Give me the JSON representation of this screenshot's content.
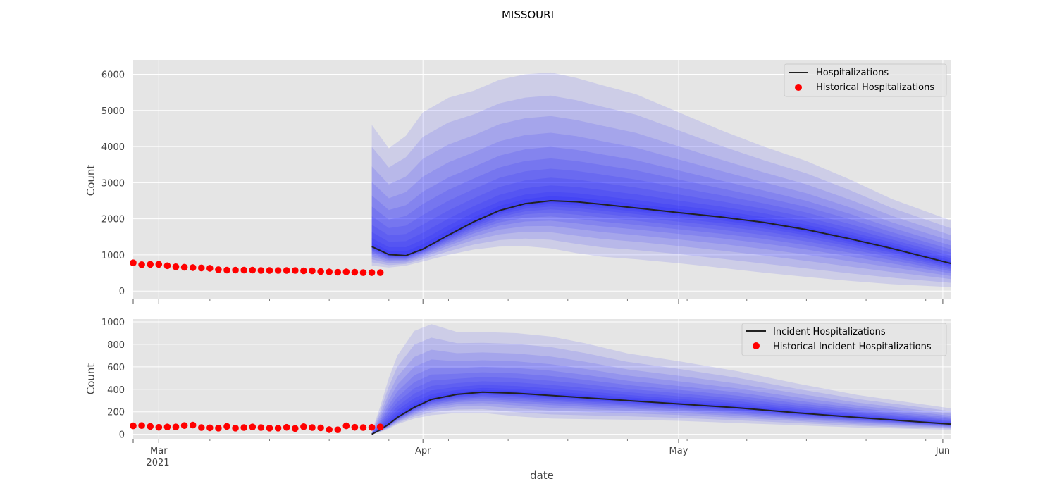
{
  "figure": {
    "title": "MISSOURI",
    "xlabel": "date",
    "x_ticks": {
      "major": [
        {
          "date": "2021-03-01",
          "label": "Mar"
        },
        {
          "date": "2021-04-01",
          "label": "Apr"
        },
        {
          "date": "2021-05-01",
          "label": "May"
        },
        {
          "date": "2021-06-01",
          "label": "Jun"
        }
      ],
      "year_label": "2021",
      "xlim": [
        "2021-02-26",
        "2021-06-02"
      ]
    }
  },
  "colors": {
    "axes_bg": "#e5e5e5",
    "grid": "#ffffff",
    "median_line": "#222222",
    "historical_points": "#ff0000",
    "band_fill": "#0000ff"
  },
  "chart_data": [
    {
      "type": "line",
      "ylabel": "Count",
      "ylim": [
        -230,
        6400
      ],
      "yticks": [
        0,
        1000,
        2000,
        3000,
        4000,
        5000,
        6000
      ],
      "grid": true,
      "legend_position": "top-right",
      "legend": [
        "Hospitalizations",
        "Historical Hospitalizations"
      ],
      "historical_start": "2021-02-26",
      "historical_values": [
        780,
        730,
        740,
        740,
        700,
        670,
        660,
        650,
        640,
        630,
        590,
        580,
        580,
        580,
        580,
        570,
        570,
        570,
        570,
        570,
        560,
        560,
        540,
        530,
        520,
        530,
        520,
        510,
        510,
        510
      ],
      "forecast_dates": [
        "2021-03-26",
        "2021-03-28",
        "2021-03-30",
        "2021-04-01",
        "2021-04-04",
        "2021-04-07",
        "2021-04-10",
        "2021-04-13",
        "2021-04-16",
        "2021-04-19",
        "2021-04-22",
        "2021-04-26",
        "2021-05-01",
        "2021-05-06",
        "2021-05-11",
        "2021-05-16",
        "2021-05-21",
        "2021-05-26",
        "2021-06-02"
      ],
      "median": [
        1230,
        1010,
        980,
        1160,
        1550,
        1920,
        2230,
        2420,
        2500,
        2470,
        2400,
        2300,
        2170,
        2050,
        1900,
        1700,
        1450,
        1180,
        760
      ],
      "band_upper": [
        4600,
        3950,
        4300,
        4950,
        5350,
        5550,
        5850,
        6000,
        6050,
        5900,
        5700,
        5450,
        4950,
        4450,
        4000,
        3600,
        3100,
        2550,
        1950
      ],
      "band_lower": [
        700,
        650,
        700,
        820,
        1000,
        1150,
        1230,
        1240,
        1180,
        1050,
        950,
        880,
        770,
        640,
        510,
        390,
        280,
        190,
        110
      ]
    },
    {
      "type": "line",
      "ylabel": "Count",
      "ylim": [
        -40,
        1025
      ],
      "yticks": [
        0,
        200,
        400,
        600,
        800,
        1000
      ],
      "grid": true,
      "legend_position": "top-right",
      "legend": [
        "Incident Hospitalizations",
        "Historical Incident Hospitalizations"
      ],
      "historical_start": "2021-02-26",
      "historical_values": [
        75,
        78,
        70,
        62,
        65,
        65,
        78,
        82,
        60,
        58,
        55,
        70,
        55,
        60,
        65,
        60,
        55,
        55,
        62,
        52,
        68,
        60,
        58,
        42,
        40,
        75,
        62,
        60,
        62,
        65
      ],
      "forecast_dates": [
        "2021-03-26",
        "2021-03-27",
        "2021-03-28",
        "2021-03-29",
        "2021-03-31",
        "2021-04-02",
        "2021-04-05",
        "2021-04-08",
        "2021-04-12",
        "2021-04-16",
        "2021-04-20",
        "2021-04-25",
        "2021-05-01",
        "2021-05-08",
        "2021-05-15",
        "2021-05-22",
        "2021-06-02"
      ],
      "median": [
        0,
        40,
        90,
        150,
        240,
        310,
        355,
        375,
        365,
        345,
        325,
        300,
        270,
        235,
        190,
        150,
        90
      ],
      "band_upper": [
        20,
        250,
        500,
        700,
        920,
        980,
        910,
        910,
        900,
        870,
        810,
        720,
        650,
        560,
        450,
        350,
        230
      ],
      "band_lower": [
        0,
        20,
        50,
        90,
        140,
        170,
        190,
        190,
        160,
        140,
        135,
        130,
        120,
        100,
        80,
        60,
        40
      ]
    }
  ]
}
